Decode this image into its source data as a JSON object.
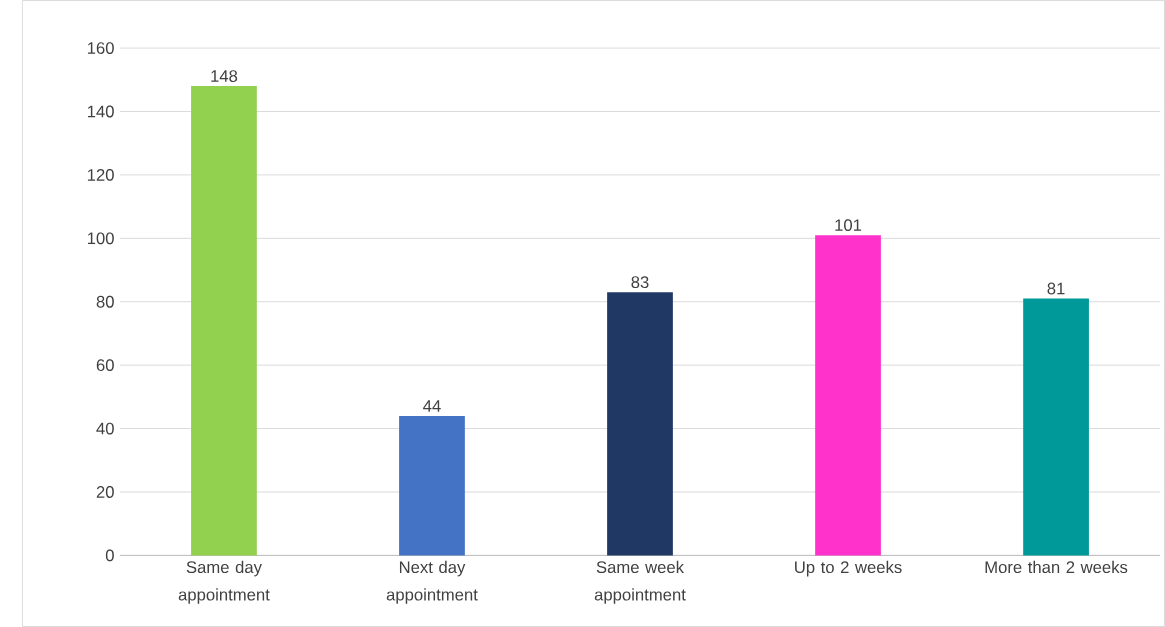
{
  "chart_data": {
    "type": "bar",
    "categories": [
      "Same day appointment",
      "Next day appointment",
      "Same week appointment",
      "Up to 2 weeks",
      "More than 2 weeks"
    ],
    "values": [
      148,
      44,
      83,
      101,
      81
    ],
    "colors": [
      "#92d050",
      "#4472c4",
      "#1f3864",
      "#ff33cc",
      "#009999"
    ],
    "ylim": [
      0,
      160
    ],
    "yticks": [
      0,
      20,
      40,
      60,
      80,
      100,
      120,
      140,
      160
    ],
    "grid": "y",
    "data_labels": true
  }
}
